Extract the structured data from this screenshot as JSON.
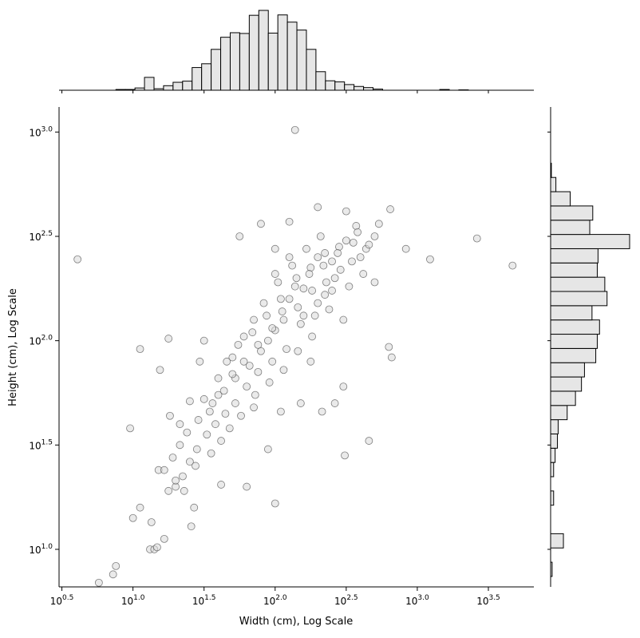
{
  "chart_data": {
    "type": "scatter",
    "subtype": "jointplot",
    "xlabel": "Width (cm), Log Scale",
    "ylabel": "Height (cm), Log Scale",
    "x_scale": "log10",
    "y_scale": "log10",
    "xlim": [
      0.48,
      3.82
    ],
    "ylim": [
      0.82,
      3.12
    ],
    "x_ticks": [
      {
        "exp": "0.5",
        "value": 0.5
      },
      {
        "exp": "1.0",
        "value": 1.0
      },
      {
        "exp": "1.5",
        "value": 1.5
      },
      {
        "exp": "2.0",
        "value": 2.0
      },
      {
        "exp": "2.5",
        "value": 2.5
      },
      {
        "exp": "3.0",
        "value": 3.0
      },
      {
        "exp": "3.5",
        "value": 3.5
      }
    ],
    "y_ticks": [
      {
        "exp": "1.0",
        "value": 1.0
      },
      {
        "exp": "1.5",
        "value": 1.5
      },
      {
        "exp": "2.0",
        "value": 2.0
      },
      {
        "exp": "2.5",
        "value": 2.5
      },
      {
        "exp": "3.0",
        "value": 3.0
      }
    ],
    "tick_base": "10",
    "point_style": {
      "fill": "#d9d9d9",
      "edge": "#555555",
      "alpha": 0.55
    },
    "bar_color": "#e6e6e6",
    "points": [
      [
        0.61,
        2.39
      ],
      [
        0.76,
        0.84
      ],
      [
        0.86,
        0.88
      ],
      [
        0.88,
        0.92
      ],
      [
        0.98,
        1.58
      ],
      [
        1.0,
        1.15
      ],
      [
        1.05,
        1.96
      ],
      [
        1.05,
        1.2
      ],
      [
        1.12,
        1.0
      ],
      [
        1.13,
        1.13
      ],
      [
        1.15,
        1.0
      ],
      [
        1.17,
        1.01
      ],
      [
        1.18,
        1.38
      ],
      [
        1.19,
        1.86
      ],
      [
        1.22,
        1.05
      ],
      [
        1.25,
        2.01
      ],
      [
        1.26,
        1.64
      ],
      [
        1.3,
        1.3
      ],
      [
        1.33,
        1.6
      ],
      [
        1.4,
        1.71
      ],
      [
        1.41,
        1.11
      ],
      [
        1.43,
        1.2
      ],
      [
        1.47,
        1.9
      ],
      [
        1.5,
        2.0
      ],
      [
        1.62,
        1.31
      ],
      [
        1.75,
        2.5
      ],
      [
        1.8,
        1.3
      ],
      [
        1.85,
        1.68
      ],
      [
        1.9,
        2.56
      ],
      [
        1.95,
        1.48
      ],
      [
        2.0,
        1.22
      ],
      [
        2.0,
        2.44
      ],
      [
        2.04,
        1.66
      ],
      [
        2.1,
        2.57
      ],
      [
        2.14,
        3.01
      ],
      [
        2.18,
        1.7
      ],
      [
        2.25,
        1.9
      ],
      [
        2.3,
        2.64
      ],
      [
        2.33,
        1.66
      ],
      [
        2.42,
        1.7
      ],
      [
        2.48,
        1.78
      ],
      [
        2.49,
        1.45
      ],
      [
        2.5,
        2.62
      ],
      [
        2.57,
        2.55
      ],
      [
        2.66,
        1.52
      ],
      [
        2.7,
        2.5
      ],
      [
        2.73,
        2.56
      ],
      [
        2.8,
        1.97
      ],
      [
        2.81,
        2.63
      ],
      [
        2.82,
        1.92
      ],
      [
        2.92,
        2.44
      ],
      [
        3.09,
        2.39
      ],
      [
        3.42,
        2.49
      ],
      [
        3.67,
        2.36
      ],
      [
        2.0,
        2.05
      ],
      [
        2.05,
        2.14
      ],
      [
        1.95,
        2.0
      ],
      [
        2.1,
        2.2
      ],
      [
        2.15,
        2.3
      ],
      [
        2.2,
        2.25
      ],
      [
        2.25,
        2.35
      ],
      [
        2.3,
        2.4
      ],
      [
        2.35,
        2.42
      ],
      [
        2.4,
        2.38
      ],
      [
        2.45,
        2.45
      ],
      [
        2.5,
        2.48
      ],
      [
        2.55,
        2.47
      ],
      [
        2.6,
        2.4
      ],
      [
        2.35,
        2.22
      ],
      [
        2.28,
        2.12
      ],
      [
        2.18,
        2.08
      ],
      [
        2.08,
        1.96
      ],
      [
        1.98,
        1.9
      ],
      [
        1.88,
        1.85
      ],
      [
        1.8,
        1.78
      ],
      [
        1.72,
        1.7
      ],
      [
        1.65,
        1.65
      ],
      [
        1.58,
        1.6
      ],
      [
        1.52,
        1.55
      ],
      [
        1.45,
        1.48
      ],
      [
        1.4,
        1.42
      ],
      [
        1.35,
        1.35
      ],
      [
        1.3,
        1.33
      ],
      [
        1.25,
        1.28
      ],
      [
        1.6,
        1.82
      ],
      [
        1.7,
        1.92
      ],
      [
        1.78,
        2.02
      ],
      [
        1.85,
        2.1
      ],
      [
        1.92,
        2.18
      ],
      [
        2.02,
        2.28
      ],
      [
        2.12,
        2.36
      ],
      [
        2.22,
        2.44
      ],
      [
        2.32,
        2.5
      ],
      [
        2.42,
        2.3
      ],
      [
        2.52,
        2.26
      ],
      [
        2.62,
        2.32
      ],
      [
        2.7,
        2.28
      ],
      [
        2.38,
        2.15
      ],
      [
        2.48,
        2.1
      ],
      [
        2.26,
        2.02
      ],
      [
        2.16,
        1.95
      ],
      [
        2.06,
        1.86
      ],
      [
        1.96,
        1.8
      ],
      [
        1.86,
        1.74
      ],
      [
        1.76,
        1.64
      ],
      [
        1.68,
        1.58
      ],
      [
        1.62,
        1.52
      ],
      [
        1.55,
        1.46
      ],
      [
        1.5,
        1.72
      ],
      [
        1.66,
        1.9
      ],
      [
        1.74,
        1.98
      ],
      [
        1.84,
        2.04
      ],
      [
        1.94,
        2.12
      ],
      [
        2.04,
        2.2
      ],
      [
        2.14,
        2.26
      ],
      [
        2.24,
        2.32
      ],
      [
        2.34,
        2.36
      ],
      [
        2.44,
        2.42
      ],
      [
        2.54,
        2.38
      ],
      [
        2.64,
        2.44
      ],
      [
        1.9,
        1.95
      ],
      [
        2.0,
        2.32
      ],
      [
        2.1,
        2.4
      ],
      [
        2.2,
        2.12
      ],
      [
        2.3,
        2.18
      ],
      [
        2.4,
        2.24
      ],
      [
        1.82,
        1.88
      ],
      [
        1.72,
        1.82
      ],
      [
        1.64,
        1.76
      ],
      [
        1.56,
        1.7
      ],
      [
        1.46,
        1.62
      ],
      [
        1.38,
        1.56
      ],
      [
        1.33,
        1.5
      ],
      [
        1.28,
        1.44
      ],
      [
        1.22,
        1.38
      ],
      [
        1.36,
        1.28
      ],
      [
        1.44,
        1.4
      ],
      [
        2.58,
        2.52
      ],
      [
        2.66,
        2.46
      ],
      [
        2.46,
        2.34
      ],
      [
        2.36,
        2.28
      ],
      [
        2.26,
        2.24
      ],
      [
        2.16,
        2.16
      ],
      [
        2.06,
        2.1
      ],
      [
        1.98,
        2.06
      ],
      [
        1.88,
        1.98
      ],
      [
        1.78,
        1.9
      ],
      [
        1.7,
        1.84
      ],
      [
        1.6,
        1.74
      ],
      [
        1.54,
        1.66
      ]
    ],
    "top_hist": {
      "bin_edges_start": 0.88,
      "bin_width": 0.067,
      "counts": [
        2,
        2,
        6,
        34,
        4,
        12,
        21,
        24,
        60,
        70,
        108,
        140,
        152,
        150,
        198,
        211,
        151,
        199,
        180,
        159,
        108,
        49,
        25,
        22,
        15,
        10,
        7,
        3,
        0,
        0,
        0,
        0,
        0,
        0,
        2,
        0,
        1
      ]
    },
    "right_hist": {
      "bin_edges_start": 0.87,
      "bin_width": 0.0683,
      "counts": [
        2,
        0,
        17,
        0,
        0,
        4,
        0,
        4,
        6,
        9,
        10,
        22,
        33,
        41,
        45,
        60,
        62,
        65,
        55,
        75,
        72,
        62,
        63,
        105,
        52,
        56,
        26,
        7,
        1
      ]
    }
  }
}
